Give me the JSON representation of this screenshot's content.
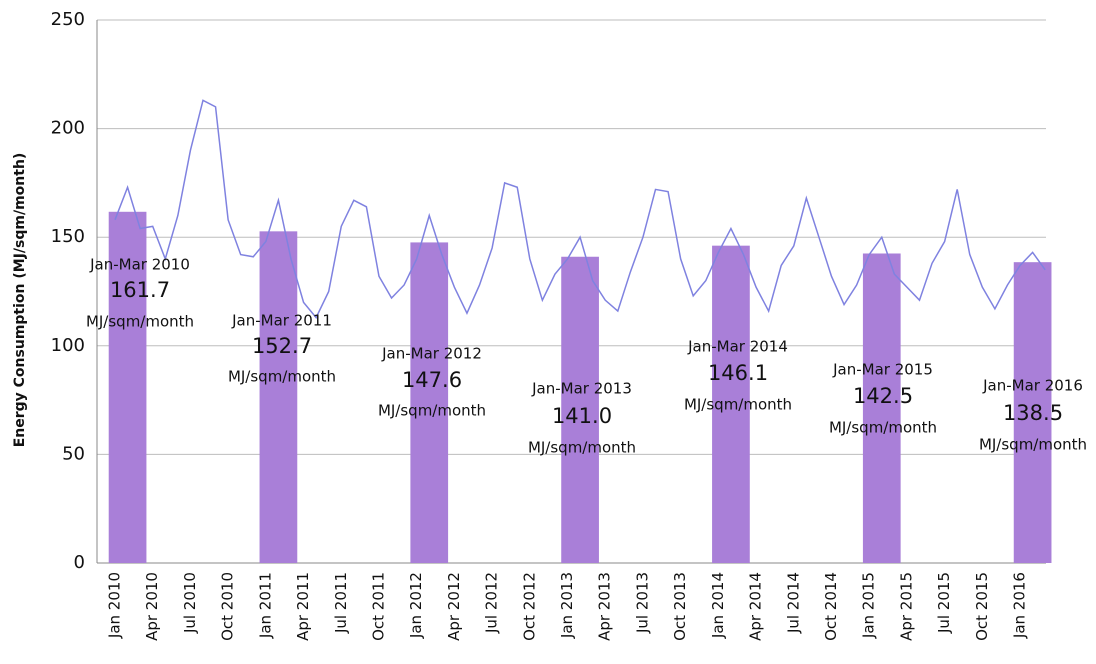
{
  "chart_data": {
    "type": "bar_line",
    "y_label": "Energy Consumption (MJ/sqm/month)",
    "categories": [
      "Jan 2010",
      null,
      null,
      "Apr 2010",
      null,
      null,
      "Jul 2010",
      null,
      null,
      "Oct 2010",
      null,
      null,
      "Jan 2011",
      null,
      null,
      "Apr 2011",
      null,
      null,
      "Jul 2011",
      null,
      null,
      "Oct 2011",
      null,
      null,
      "Jan 2012",
      null,
      null,
      "Apr 2012",
      null,
      null,
      "Jul 2012",
      null,
      null,
      "Oct 2012",
      null,
      null,
      "Jan 2013",
      null,
      null,
      "Apr 2013",
      null,
      null,
      "Jul 2013",
      null,
      null,
      "Oct 2013",
      null,
      null,
      "Jan 2014",
      null,
      null,
      "Apr 2014",
      null,
      null,
      "Jul 2014",
      null,
      null,
      "Oct 2014",
      null,
      null,
      "Jan 2015",
      null,
      null,
      "Apr 2015",
      null,
      null,
      "Jul 2015",
      null,
      null,
      "Oct 2015",
      null,
      null,
      "Jan 2016",
      null,
      null
    ],
    "series": [
      {
        "kind": "bar",
        "color": "#a97fd8",
        "values": [
          161.7,
          null,
          null,
          null,
          null,
          null,
          null,
          null,
          null,
          null,
          null,
          null,
          152.7,
          null,
          null,
          null,
          null,
          null,
          null,
          null,
          null,
          null,
          null,
          null,
          147.6,
          null,
          null,
          null,
          null,
          null,
          null,
          null,
          null,
          null,
          null,
          null,
          141.0,
          null,
          null,
          null,
          null,
          null,
          null,
          null,
          null,
          null,
          null,
          null,
          146.1,
          null,
          null,
          null,
          null,
          null,
          null,
          null,
          null,
          null,
          null,
          null,
          142.5,
          null,
          null,
          null,
          null,
          null,
          null,
          null,
          null,
          null,
          null,
          null,
          138.5,
          null,
          null
        ]
      },
      {
        "kind": "line",
        "color": "#7f82e0",
        "values": [
          158,
          173,
          154,
          155,
          140,
          160,
          190,
          213,
          210,
          158,
          142,
          141,
          148,
          167,
          140,
          120,
          113,
          125,
          155,
          167,
          164,
          132,
          122,
          128,
          140,
          160,
          142,
          127,
          115,
          128,
          145,
          175,
          173,
          140,
          121,
          133,
          140,
          150,
          130,
          121,
          116,
          134,
          150,
          172,
          171,
          140,
          123,
          130,
          143,
          154,
          142,
          127,
          116,
          137,
          146,
          168,
          150,
          132,
          119,
          128,
          142,
          150,
          133,
          127,
          121,
          138,
          148,
          172,
          142,
          127,
          117,
          128,
          137,
          143,
          135
        ]
      }
    ],
    "value_labels": [
      "161.7",
      "152.7",
      "147.6",
      "141.0",
      "146.1",
      "142.5",
      "138.5"
    ],
    "annotations": [
      {
        "period": "Jan-Mar 2010",
        "unit": "MJ/sqm/month"
      },
      {
        "period": "Jan-Mar 2011",
        "unit": "MJ/sqm/month"
      },
      {
        "period": "Jan-Mar 2012",
        "unit": "MJ/sqm/month"
      },
      {
        "period": "Jan-Mar 2013",
        "unit": "MJ/sqm/month"
      },
      {
        "period": "Jan-Mar 2014",
        "unit": "MJ/sqm/month"
      },
      {
        "period": "Jan-Mar 2015",
        "unit": "MJ/sqm/month"
      },
      {
        "period": "Jan-Mar 2016",
        "unit": "MJ/sqm/month"
      }
    ],
    "ylim": [
      0,
      250
    ],
    "yticks": [
      0,
      50,
      100,
      150,
      200,
      250
    ],
    "grid": true
  }
}
